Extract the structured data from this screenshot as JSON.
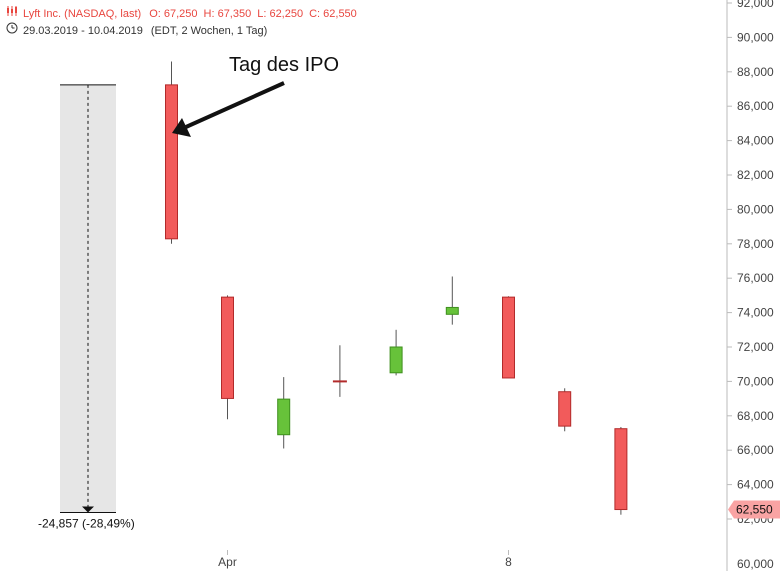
{
  "header": {
    "instrument": "Lyft Inc. (NASDAQ, last)",
    "open": "O: 67,250",
    "high": "H: 67,350",
    "low": "L: 62,250",
    "close": "C: 62,550",
    "range": "29.03.2019 - 10.04.2019",
    "settings": "(EDT, 2 Wochen, 1 Tag)"
  },
  "annotation": {
    "text": "Tag des IPO"
  },
  "measure": {
    "label": "-24,857 (-28,49%)"
  },
  "last_price_badge": "62,550",
  "colors": {
    "up": "#67c23a",
    "down": "#f25b5b",
    "header_text": "#e8463f",
    "axis": "#bbbbbb",
    "measure_fill": "#e6e6e6"
  },
  "chart_data": {
    "type": "candlestick",
    "title": "Lyft Inc. (NASDAQ, last)",
    "y_axis_position": "right",
    "ylim": [
      60000,
      92000
    ],
    "yticks": [
      62000,
      64000,
      66000,
      68000,
      70000,
      72000,
      74000,
      76000,
      78000,
      80000,
      82000,
      84000,
      86000,
      88000,
      90000,
      92000
    ],
    "ytick_labels": [
      "62,000",
      "64,000",
      "66,000",
      "68,000",
      "70,000",
      "72,000",
      "74,000",
      "76,000",
      "78,000",
      "80,000",
      "82,000",
      "84,000",
      "86,000",
      "88,000",
      "90,000",
      "92,000"
    ],
    "bottom_tick_label": "60,000",
    "x_tick_labels": [
      {
        "label": "Apr",
        "at": "2019-04-01"
      },
      {
        "label": "8",
        "at": "2019-04-08"
      }
    ],
    "candles": [
      {
        "date": "2019-03-29",
        "open": 87.24,
        "high": 88.6,
        "low": 78.0,
        "close": 78.29
      },
      {
        "date": "2019-04-01",
        "open": 74.9,
        "high": 75.0,
        "low": 67.8,
        "close": 69.01
      },
      {
        "date": "2019-04-02",
        "open": 66.9,
        "high": 70.25,
        "low": 66.1,
        "close": 68.97
      },
      {
        "date": "2019-04-03",
        "open": 70.0,
        "high": 72.1,
        "low": 69.1,
        "close": 70.0
      },
      {
        "date": "2019-04-04",
        "open": 70.5,
        "high": 73.0,
        "low": 70.35,
        "close": 72.0
      },
      {
        "date": "2019-04-05",
        "open": 73.9,
        "high": 76.1,
        "low": 73.3,
        "close": 74.3
      },
      {
        "date": "2019-04-08",
        "open": 74.9,
        "high": 74.95,
        "low": 70.2,
        "close": 70.2
      },
      {
        "date": "2019-04-09",
        "open": 69.4,
        "high": 69.6,
        "low": 67.1,
        "close": 67.4
      },
      {
        "date": "2019-04-10",
        "open": 67.25,
        "high": 67.35,
        "low": 62.25,
        "close": 62.55
      }
    ],
    "measure_range": {
      "from": 87.24,
      "to": 62.38,
      "change": -24.857,
      "change_pct": -28.49
    },
    "last_price": 62.55
  }
}
